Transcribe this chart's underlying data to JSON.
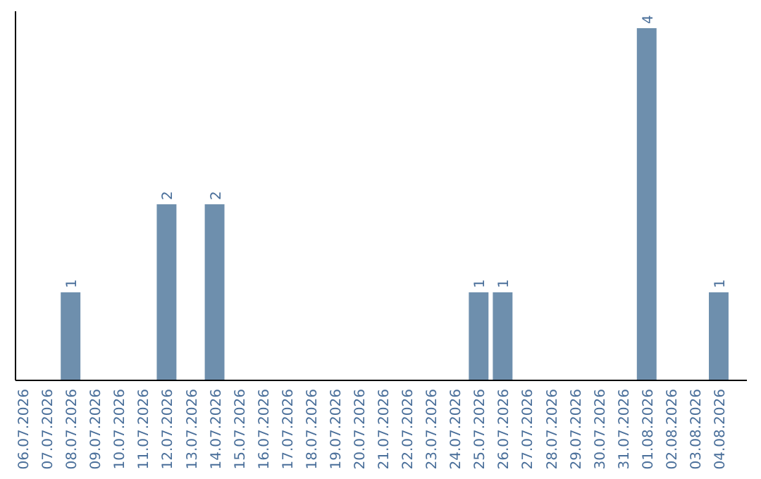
{
  "chart_data": {
    "type": "bar",
    "categories": [
      "06.07.2026",
      "07.07.2026",
      "08.07.2026",
      "09.07.2026",
      "10.07.2026",
      "11.07.2026",
      "12.07.2026",
      "13.07.2026",
      "14.07.2026",
      "15.07.2026",
      "16.07.2026",
      "17.07.2026",
      "18.07.2026",
      "19.07.2026",
      "20.07.2026",
      "21.07.2026",
      "22.07.2026",
      "23.07.2026",
      "24.07.2026",
      "25.07.2026",
      "26.07.2026",
      "27.07.2026",
      "28.07.2026",
      "29.07.2026",
      "30.07.2026",
      "31.07.2026",
      "01.08.2026",
      "02.08.2026",
      "03.08.2026",
      "04.08.2026"
    ],
    "values": [
      0,
      0,
      1,
      0,
      0,
      0,
      2,
      0,
      2,
      0,
      0,
      0,
      0,
      0,
      0,
      0,
      0,
      0,
      0,
      1,
      1,
      0,
      0,
      0,
      0,
      0,
      4,
      0,
      0,
      1
    ],
    "value_labels": [
      null,
      null,
      "1",
      null,
      null,
      null,
      "2",
      null,
      "2",
      null,
      null,
      null,
      null,
      null,
      null,
      null,
      null,
      null,
      null,
      "1",
      "1",
      null,
      null,
      null,
      null,
      null,
      "4",
      null,
      null,
      "1"
    ],
    "color": "#6e8fad",
    "tick_labels": "x"
  }
}
